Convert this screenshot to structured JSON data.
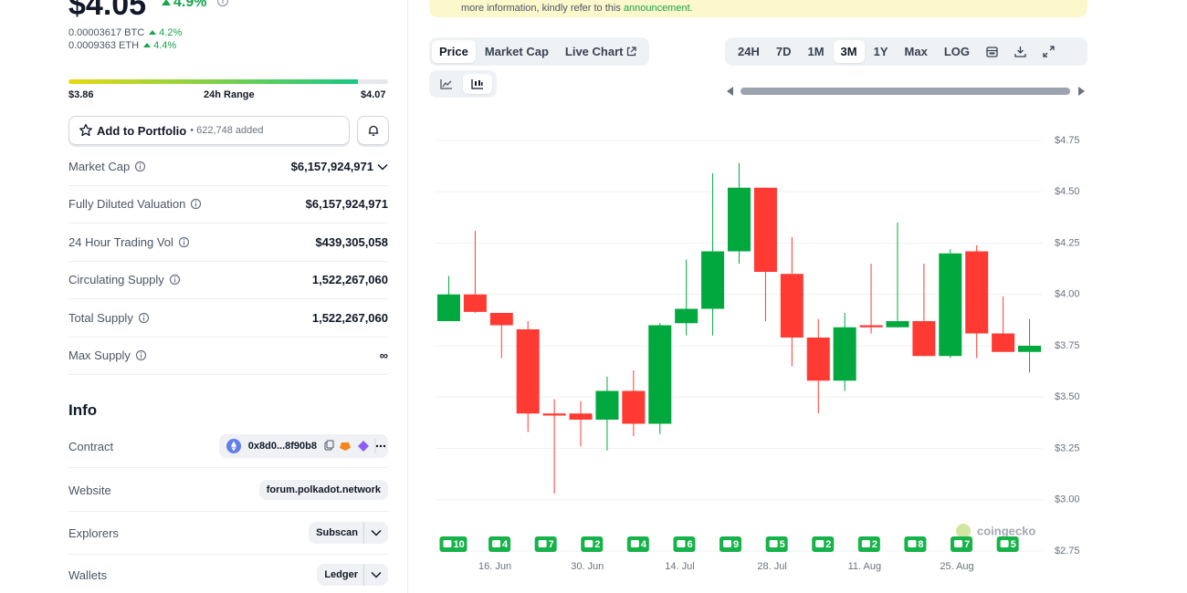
{
  "price": {
    "value": "$4.05",
    "change": "4.9%",
    "btc": "0.00003617 BTC",
    "btc_change": "4.2%",
    "eth": "0.0009363 ETH",
    "eth_change": "4.4%"
  },
  "range": {
    "low": "$3.86",
    "label": "24h Range",
    "high": "$4.07"
  },
  "portfolio": {
    "button": "Add to Portfolio",
    "added": "• 622,748 added"
  },
  "stats": [
    {
      "label": "Market Cap",
      "value": "$6,157,924,971"
    },
    {
      "label": "Fully Diluted Valuation",
      "value": "$6,157,924,971"
    },
    {
      "label": "24 Hour Trading Vol",
      "value": "$439,305,058"
    },
    {
      "label": "Circulating Supply",
      "value": "1,522,267,060"
    },
    {
      "label": "Total Supply",
      "value": "1,522,267,060"
    },
    {
      "label": "Max Supply",
      "value": "∞"
    }
  ],
  "info": {
    "title": "Info",
    "rows": [
      {
        "label": "Contract",
        "value": "0x8d0...8f90b8"
      },
      {
        "label": "Website",
        "value": "forum.polkadot.network"
      },
      {
        "label": "Explorers",
        "value": "Subscan"
      },
      {
        "label": "Wallets",
        "value": "Ledger"
      }
    ]
  },
  "banner": {
    "text": "more information, kindly refer to this ",
    "link": "announcement."
  },
  "tabs": [
    "Price",
    "Market Cap",
    "Live Chart"
  ],
  "ranges": [
    "24H",
    "7D",
    "1M",
    "3M",
    "1Y",
    "Max",
    "LOG"
  ],
  "active_tab": "Price",
  "active_range": "3M",
  "chart_data": {
    "type": "candlestick",
    "x": [
      "9. Jun",
      "13. Jun",
      "17. Jun",
      "21. Jun",
      "25. Jun",
      "29. Jun",
      "3. Jul",
      "7. Jul",
      "11. Jul",
      "15. Jul",
      "19. Jul",
      "23. Jul",
      "27. Jul",
      "31. Jul",
      "4. Aug",
      "8. Aug",
      "12. Aug",
      "16. Aug",
      "20. Aug",
      "24. Aug",
      "28. Aug",
      "1. Sep",
      "5. Sep"
    ],
    "open": [
      3.87,
      4.0,
      3.91,
      3.83,
      3.42,
      3.42,
      3.39,
      3.53,
      3.37,
      3.86,
      3.93,
      4.21,
      4.52,
      4.1,
      3.79,
      3.58,
      3.85,
      3.84,
      3.87,
      3.7,
      4.21,
      3.81,
      3.72
    ],
    "high": [
      4.09,
      4.31,
      3.91,
      3.87,
      3.49,
      3.48,
      3.6,
      3.63,
      3.86,
      4.17,
      4.59,
      4.64,
      4.52,
      4.28,
      3.88,
      3.91,
      4.15,
      4.35,
      4.15,
      4.22,
      4.24,
      3.99,
      3.88
    ],
    "low": [
      3.87,
      3.91,
      3.69,
      3.33,
      3.03,
      3.26,
      3.24,
      3.31,
      3.32,
      3.8,
      3.8,
      4.15,
      3.87,
      3.65,
      3.42,
      3.53,
      3.81,
      3.84,
      3.7,
      3.69,
      3.69,
      3.72,
      3.62
    ],
    "close": [
      4.0,
      3.915,
      3.85,
      3.42,
      3.41,
      3.39,
      3.53,
      3.37,
      3.85,
      3.93,
      4.21,
      4.52,
      4.11,
      3.79,
      3.58,
      3.84,
      3.84,
      3.87,
      3.7,
      4.2,
      3.81,
      3.72,
      3.75
    ],
    "up_color": "#00a83e",
    "down_color": "#ff3a33",
    "xlim": [
      "7. Jun",
      "7. Sep"
    ],
    "xticks": [
      "16. Jun",
      "30. Jun",
      "14. Jul",
      "28. Jul",
      "11. Aug",
      "25. Aug"
    ],
    "ylim": [
      2.75,
      4.75
    ],
    "yticks": [
      {
        "value": 2.75,
        "label": "$2.75"
      },
      {
        "value": 3.0,
        "label": "$3.00"
      },
      {
        "value": 3.25,
        "label": "$3.25"
      },
      {
        "value": 3.5,
        "label": "$3.50"
      },
      {
        "value": 3.75,
        "label": "$3.75"
      },
      {
        "value": 4.0,
        "label": "$4.00"
      },
      {
        "value": 4.25,
        "label": "$4.25"
      },
      {
        "value": 4.5,
        "label": "$4.50"
      },
      {
        "value": 4.75,
        "label": "$4.75"
      }
    ],
    "grid": true,
    "events": [
      {
        "x": "9. Jun",
        "count": 10
      },
      {
        "x": "16. Jun",
        "count": 4
      },
      {
        "x": "23. Jun",
        "count": 7
      },
      {
        "x": "30. Jun",
        "count": 2
      },
      {
        "x": "7. Jul",
        "count": 4
      },
      {
        "x": "14. Jul",
        "count": 6
      },
      {
        "x": "21. Jul",
        "count": 9
      },
      {
        "x": "28. Jul",
        "count": 5
      },
      {
        "x": "4. Aug",
        "count": 2
      },
      {
        "x": "11. Aug",
        "count": 2
      },
      {
        "x": "18. Aug",
        "count": 8
      },
      {
        "x": "25. Aug",
        "count": 7
      },
      {
        "x": "1. Sep",
        "count": 5
      }
    ],
    "event_color": "#16b24a",
    "watermark": "coingecko"
  }
}
